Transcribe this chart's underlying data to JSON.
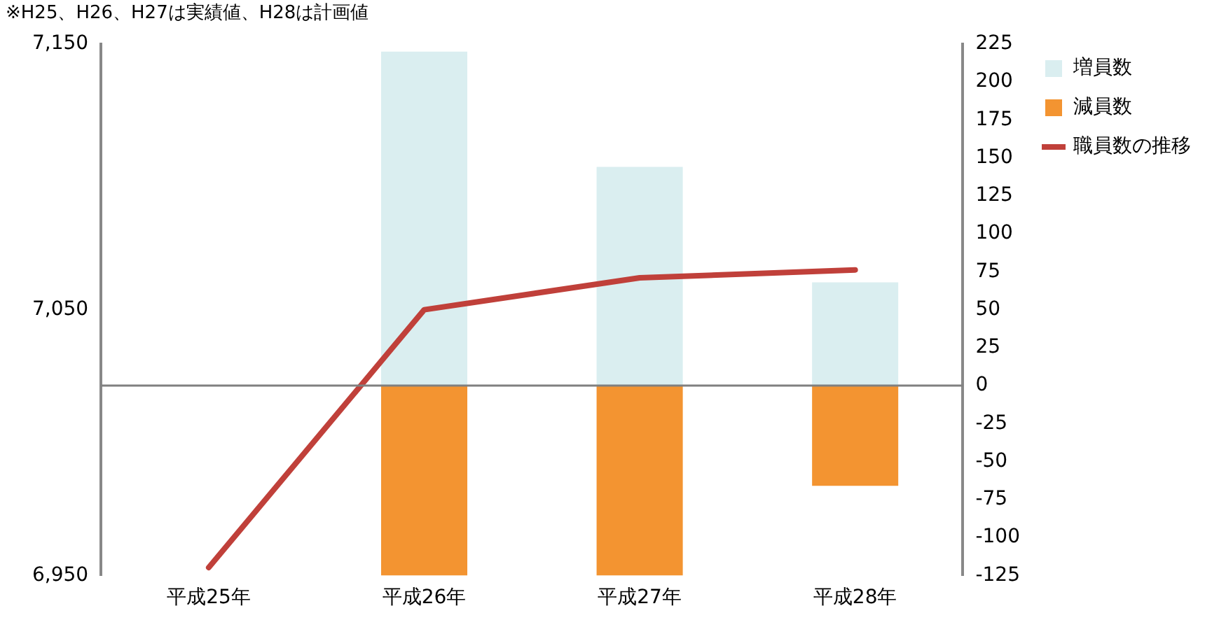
{
  "chart_data": {
    "type": "bar",
    "categories": [
      "平成25年",
      "平成26年",
      "平成27年",
      "平成28年"
    ],
    "series": [
      {
        "name": "増員数",
        "axis": "y2",
        "color": "#daeef0",
        "values": [
          null,
          220,
          144,
          68
        ]
      },
      {
        "name": "減員数",
        "axis": "y2",
        "color": "#f39431",
        "values": [
          null,
          -125,
          -125,
          -66
        ]
      },
      {
        "name": "職員数の推移",
        "type": "line",
        "axis": "y",
        "color": "#c0403a",
        "values": [
          6953,
          7050,
          7062,
          7065
        ]
      }
    ],
    "stacked": true,
    "ylim": [
      6950,
      7150
    ],
    "yticks": [
      {
        "value": 6950,
        "label": "6,950"
      },
      {
        "value": 7050,
        "label": "7,050"
      },
      {
        "value": 7150,
        "label": "7,150"
      }
    ],
    "y2lim": [
      -125,
      225
    ],
    "y2ticks": [
      -125,
      -100,
      -75,
      -50,
      -25,
      0,
      25,
      50,
      75,
      100,
      125,
      150,
      175,
      200,
      225
    ],
    "ref_lines": [
      {
        "axis": "y2",
        "value": 0,
        "color": "#808080"
      }
    ],
    "grid": false,
    "legend": "top right",
    "marker": "none",
    "annotations": [
      "※H25、H26、H27は実績値、H28は計画値"
    ]
  }
}
